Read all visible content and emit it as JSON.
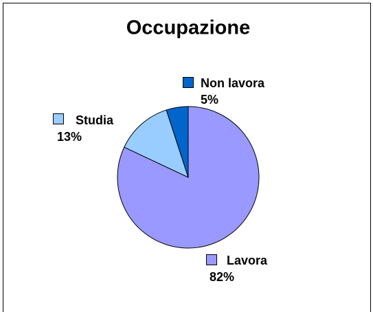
{
  "chart_data": {
    "type": "pie",
    "title": "Occupazione",
    "categories": [
      "Lavora",
      "Studia",
      "Non lavora"
    ],
    "values": [
      82,
      13,
      5
    ],
    "value_labels": [
      "82%",
      "13%",
      "5%"
    ],
    "colors": [
      "#9999ff",
      "#99ccff",
      "#0066cc"
    ]
  }
}
